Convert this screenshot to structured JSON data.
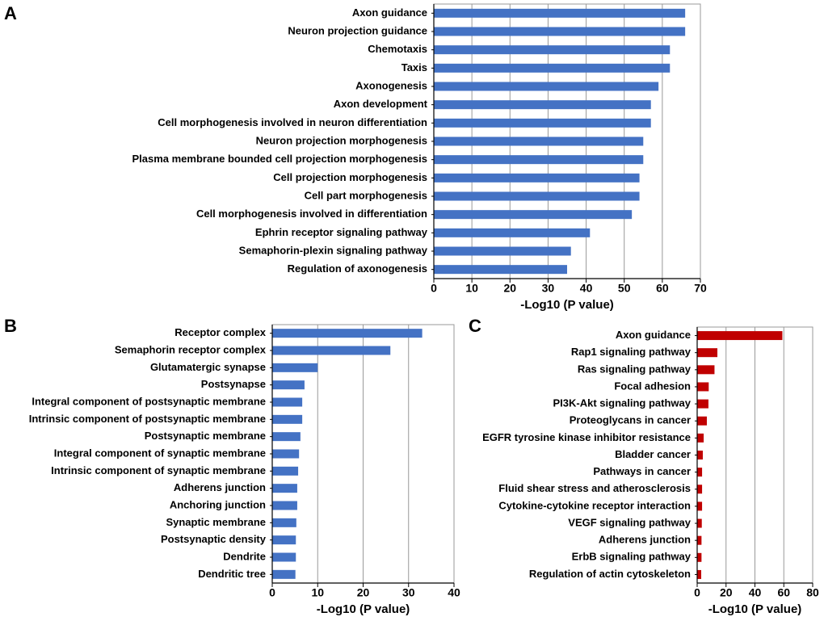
{
  "chart_data": [
    {
      "type": "bar",
      "orientation": "horizontal",
      "label": "A",
      "color": "#4472c4",
      "categories": [
        "Axon guidance",
        "Neuron projection guidance",
        "Chemotaxis",
        "Taxis",
        "Axonogenesis",
        "Axon development",
        "Cell morphogenesis involved in neuron differentiation",
        "Neuron projection morphogenesis",
        "Plasma membrane bounded cell projection morphogenesis",
        "Cell projection morphogenesis",
        "Cell part morphogenesis",
        "Cell morphogenesis involved in differentiation",
        "Ephrin receptor signaling pathway",
        "Semaphorin-plexin signaling pathway",
        "Regulation of axonogenesis"
      ],
      "values": [
        66,
        66,
        62,
        62,
        59,
        57,
        57,
        55,
        55,
        54,
        54,
        52,
        41,
        36,
        35
      ],
      "xlim": [
        0,
        70
      ],
      "xticks": [
        0,
        10,
        20,
        30,
        40,
        50,
        60,
        70
      ],
      "xlabel": "-Log10 (P value)",
      "grid": true
    },
    {
      "type": "bar",
      "orientation": "horizontal",
      "label": "B",
      "color": "#4472c4",
      "categories": [
        "Receptor complex",
        "Semaphorin receptor complex",
        "Glutamatergic synapse",
        "Postsynapse",
        "Integral component of postsynaptic membrane",
        "Intrinsic component of postsynaptic membrane",
        "Postsynaptic membrane",
        "Integral component of synaptic membrane",
        "Intrinsic component of synaptic membrane",
        "Adherens junction",
        "Anchoring junction",
        "Synaptic membrane",
        "Postsynaptic density",
        "Dendrite",
        "Dendritic tree"
      ],
      "values": [
        33,
        26,
        10,
        7.1,
        6.6,
        6.6,
        6.2,
        5.9,
        5.7,
        5.5,
        5.5,
        5.3,
        5.2,
        5.2,
        5.1
      ],
      "xlim": [
        0,
        40
      ],
      "xticks": [
        0,
        10,
        20,
        30,
        40
      ],
      "xlabel": "-Log10 (P value)",
      "grid": true
    },
    {
      "type": "bar",
      "orientation": "horizontal",
      "label": "C",
      "color": "#c00000",
      "categories": [
        "Axon guidance",
        "Rap1 signaling pathway",
        "Ras signaling pathway",
        "Focal adhesion",
        "PI3K-Akt signaling pathway",
        "Proteoglycans in cancer",
        "EGFR tyrosine kinase inhibitor resistance",
        "Bladder cancer",
        "Pathways in cancer",
        "Fluid shear stress and atherosclerosis",
        "Cytokine-cytokine receptor interaction",
        "VEGF signaling pathway",
        "Adherens junction",
        "ErbB signaling pathway",
        "Regulation of actin cytoskeleton"
      ],
      "values": [
        59,
        14,
        12,
        8,
        7.8,
        6.7,
        4.5,
        3.9,
        3.4,
        3.4,
        3.4,
        3.2,
        3,
        3,
        2.8
      ],
      "xlim": [
        0,
        80
      ],
      "xticks": [
        0,
        20,
        40,
        60,
        80
      ],
      "xlabel": "-Log10 (P value)",
      "grid": true
    }
  ]
}
